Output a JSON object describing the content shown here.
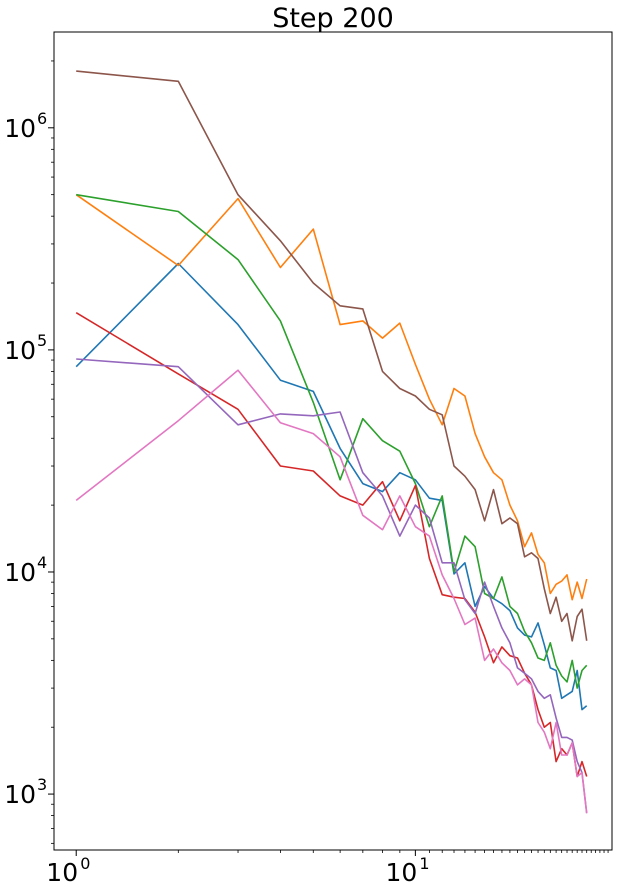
{
  "chart_data": {
    "type": "line",
    "title": "Step 200",
    "xlabel": "",
    "ylabel": "",
    "xscale": "log",
    "yscale": "log",
    "xlim": [
      0.86,
      38
    ],
    "ylim": [
      560,
      2700000
    ],
    "grid": false,
    "x_ticks": [
      {
        "value": 1,
        "base": "10",
        "exp": "0"
      },
      {
        "value": 10,
        "base": "10",
        "exp": "1"
      }
    ],
    "y_ticks": [
      {
        "value": 1000,
        "base": "10",
        "exp": "3"
      },
      {
        "value": 10000,
        "base": "10",
        "exp": "4"
      },
      {
        "value": 100000,
        "base": "10",
        "exp": "5"
      },
      {
        "value": 1000000,
        "base": "10",
        "exp": "6"
      }
    ],
    "x": [
      1,
      2,
      3,
      4,
      5,
      6,
      7,
      8,
      9,
      10,
      11,
      12,
      13,
      14,
      15,
      16,
      17,
      18,
      19,
      20,
      21,
      22,
      23,
      24,
      25,
      26,
      27,
      28,
      29,
      30,
      31,
      32
    ],
    "series": [
      {
        "color": "#1f77b4",
        "values": [
          84000,
          245000,
          130000,
          73000,
          65000,
          36000,
          25000,
          23000,
          28000,
          26000,
          21500,
          21000,
          9800,
          11000,
          7000,
          8600,
          7600,
          7200,
          6700,
          5600,
          5200,
          5100,
          5900,
          4700,
          3700,
          3600,
          2700,
          2800,
          2900,
          3600,
          2400,
          2500
        ]
      },
      {
        "color": "#ff7f0e",
        "values": [
          500000,
          240000,
          480000,
          235000,
          350000,
          130000,
          135000,
          113000,
          132000,
          86000,
          60000,
          46000,
          67000,
          62000,
          42000,
          33000,
          28000,
          26000,
          20000,
          17000,
          13000,
          15000,
          12000,
          11000,
          8000,
          8800,
          9100,
          9700,
          7500,
          9000,
          7600,
          9300
        ]
      },
      {
        "color": "#2ca02c",
        "values": [
          500000,
          420000,
          255000,
          135000,
          58000,
          26000,
          49000,
          39000,
          35000,
          25000,
          16000,
          22000,
          10000,
          14500,
          13000,
          8000,
          7600,
          9500,
          7000,
          6500,
          5400,
          4800,
          4100,
          4000,
          4800,
          3800,
          3400,
          3200,
          4000,
          3000,
          3600,
          3800
        ]
      },
      {
        "color": "#d62728",
        "values": [
          147000,
          78000,
          54000,
          30000,
          28500,
          22000,
          20000,
          25500,
          17000,
          24500,
          11500,
          7900,
          7700,
          7600,
          6600,
          5100,
          3900,
          4600,
          4200,
          4100,
          3500,
          3100,
          2400,
          2000,
          2100,
          1400,
          1600,
          1500,
          1700,
          1200,
          1400,
          1200
        ]
      },
      {
        "color": "#9467bd",
        "values": [
          91000,
          84000,
          46000,
          51500,
          50500,
          52500,
          28000,
          22000,
          14500,
          20000,
          17500,
          11000,
          11000,
          7500,
          6500,
          9000,
          7000,
          5600,
          4800,
          3700,
          3500,
          3300,
          2900,
          2700,
          2800,
          2200,
          1800,
          1800,
          1750,
          1400,
          1250,
          820
        ]
      },
      {
        "color": "#8c564b",
        "values": [
          1800000,
          1620000,
          500000,
          310000,
          200000,
          158000,
          153000,
          80000,
          67000,
          62000,
          54000,
          51000,
          30000,
          27000,
          23500,
          17000,
          23500,
          16500,
          17500,
          16500,
          11700,
          12200,
          11500,
          8400,
          6500,
          7700,
          6000,
          6500,
          4900,
          6300,
          6800,
          4900
        ]
      },
      {
        "color": "#e377c2",
        "values": [
          21000,
          48000,
          81000,
          47000,
          42000,
          33000,
          18000,
          15500,
          22000,
          16000,
          14500,
          9700,
          7600,
          5800,
          6200,
          4000,
          4500,
          3900,
          3600,
          3100,
          3300,
          3100,
          2100,
          1900,
          1600,
          2100,
          1500,
          1500,
          1700,
          1200,
          1250,
          820
        ]
      }
    ]
  }
}
